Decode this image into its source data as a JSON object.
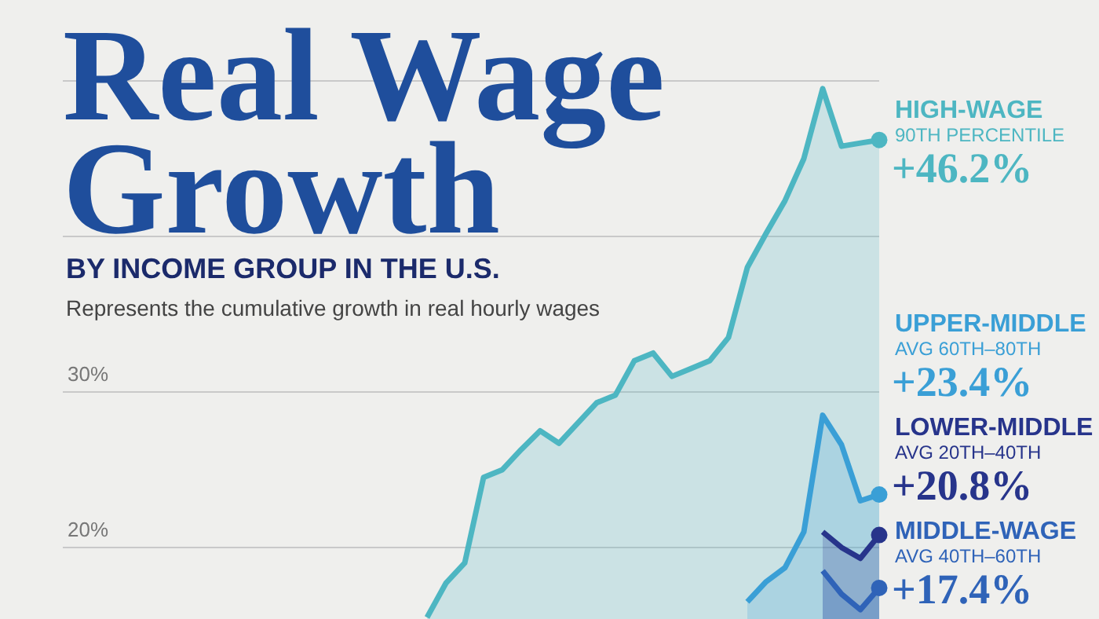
{
  "chart_data": {
    "type": "area",
    "title": "Real Wage Growth",
    "subtitle": "BY INCOME GROUP IN THE U.S.",
    "annotations": [
      "Represents the cumulative growth in real hourly wages",
      "90TH PERCENTILE",
      "AVG 60TH–80TH",
      "AVG 20TH–40TH",
      "AVG 40TH–60TH"
    ],
    "categories": [
      null,
      null,
      null,
      null,
      null,
      null,
      null,
      null,
      null,
      null,
      null,
      null,
      null,
      null,
      null,
      null,
      null,
      null,
      null,
      null,
      null,
      null,
      null,
      null,
      null
    ],
    "series": [
      {
        "name": "HIGH-WAGE",
        "color": "#4db6c2",
        "values": [
          15.5,
          17.7,
          19.0,
          24.5,
          25.0,
          26.3,
          27.5,
          26.7,
          28.0,
          29.3,
          29.8,
          32.0,
          32.5,
          31.0,
          31.5,
          32.0,
          33.5,
          38.0,
          40.2,
          42.3,
          45.0,
          49.5,
          45.8,
          46.0,
          46.2
        ],
        "value_labels": [
          null,
          null,
          null,
          null,
          null,
          null,
          null,
          null,
          null,
          null,
          null,
          null,
          null,
          null,
          null,
          null,
          null,
          null,
          null,
          null,
          null,
          null,
          null,
          null,
          "+46.2%"
        ]
      },
      {
        "name": "UPPER-MIDDLE",
        "color": "#3a9fd6",
        "values": [
          null,
          null,
          null,
          null,
          null,
          null,
          null,
          null,
          null,
          null,
          null,
          null,
          null,
          null,
          null,
          null,
          null,
          16.5,
          17.8,
          18.7,
          21.0,
          28.5,
          26.6,
          23.0,
          23.4
        ],
        "value_labels": [
          null,
          null,
          null,
          null,
          null,
          null,
          null,
          null,
          null,
          null,
          null,
          null,
          null,
          null,
          null,
          null,
          null,
          null,
          null,
          null,
          null,
          null,
          null,
          null,
          "+23.4%"
        ]
      },
      {
        "name": "LOWER-MIDDLE",
        "color": "#27348b",
        "values": [
          null,
          null,
          null,
          null,
          null,
          null,
          null,
          null,
          null,
          null,
          null,
          null,
          null,
          null,
          null,
          null,
          null,
          null,
          null,
          null,
          null,
          21.0,
          20.0,
          19.3,
          20.8
        ],
        "value_labels": [
          null,
          null,
          null,
          null,
          null,
          null,
          null,
          null,
          null,
          null,
          null,
          null,
          null,
          null,
          null,
          null,
          null,
          null,
          null,
          null,
          null,
          null,
          null,
          null,
          "+20.8%"
        ]
      },
      {
        "name": "MIDDLE-WAGE",
        "color": "#2f63b8",
        "values": [
          null,
          null,
          null,
          null,
          null,
          null,
          null,
          null,
          null,
          null,
          null,
          null,
          null,
          null,
          null,
          null,
          null,
          null,
          null,
          null,
          null,
          18.5,
          17.0,
          16.0,
          17.4
        ],
        "value_labels": [
          null,
          null,
          null,
          null,
          null,
          null,
          null,
          null,
          null,
          null,
          null,
          null,
          null,
          null,
          null,
          null,
          null,
          null,
          null,
          null,
          null,
          null,
          null,
          null,
          "+17.4%"
        ]
      }
    ],
    "ylim": [
      15.4,
      55.2
    ],
    "yticks": [
      {
        "value": 20,
        "label": "20%"
      },
      {
        "value": 30,
        "label": "30%"
      },
      {
        "value": 40,
        "label": null
      },
      {
        "value": 50,
        "label": null
      }
    ],
    "grid": "y",
    "tick_labels": "y",
    "line_style": "solid"
  }
}
